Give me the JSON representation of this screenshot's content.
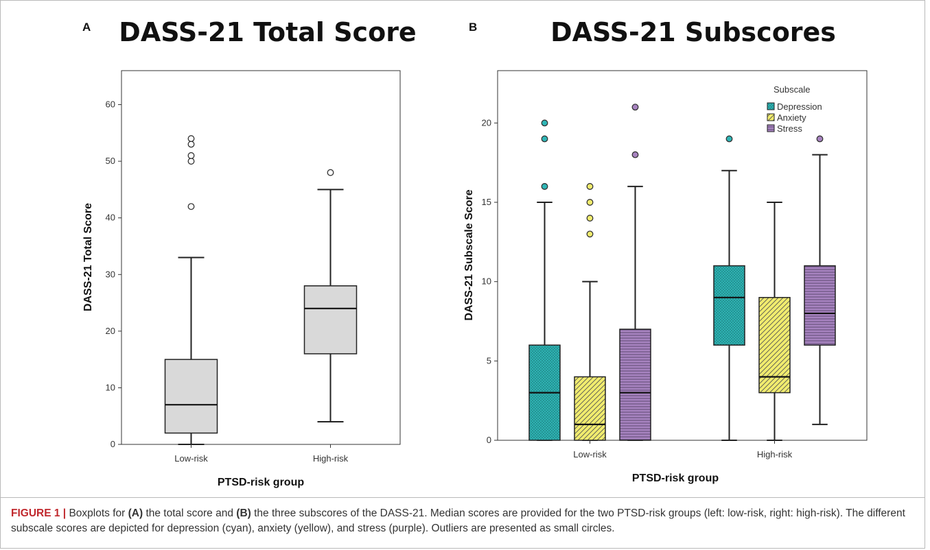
{
  "panel_a": {
    "letter": "A",
    "title": "DASS-21 Total Score"
  },
  "panel_b": {
    "letter": "B",
    "title": "DASS-21 Subscores"
  },
  "caption": {
    "label": "FIGURE 1 |",
    "t1": " Boxplots for ",
    "b1": "(A)",
    "t2": " the total score and ",
    "b2": "(B)",
    "t3": " the three subscores of the DASS-21. Median scores are provided for the two PTSD-risk groups (left: low-risk, right: high-risk). The different subscale scores are depicted for depression (cyan), anxiety (yellow), and stress (purple). Outliers are presented as small circles."
  },
  "chart_data": [
    {
      "type": "boxplot",
      "ylabel": "DASS-21 Total Score",
      "xlabel": "PTSD-risk group",
      "ylim": [
        0,
        66
      ],
      "yticks": [
        0,
        10,
        20,
        30,
        40,
        50,
        60
      ],
      "categories": [
        "Low-risk",
        "High-risk"
      ],
      "boxes": [
        {
          "category": "Low-risk",
          "min": 0,
          "q1": 2,
          "median": 7,
          "q3": 15,
          "max": 33,
          "outliers": [
            42,
            50,
            51,
            53,
            54
          ]
        },
        {
          "category": "High-risk",
          "min": 4,
          "q1": 16,
          "median": 24,
          "q3": 28,
          "max": 45,
          "outliers": [
            48
          ]
        }
      ],
      "box_color": "#d9d9d9"
    },
    {
      "type": "boxplot",
      "ylabel": "DASS-21 Subscale Score",
      "xlabel": "PTSD-risk group",
      "ylim": [
        0,
        23.3
      ],
      "yticks": [
        0,
        5,
        10,
        15,
        20
      ],
      "categories": [
        "Low-risk",
        "High-risk"
      ],
      "legend": {
        "title": "Subscale",
        "position": "top-right",
        "entries": [
          "Depression",
          "Anxiety",
          "Stress"
        ]
      },
      "series": [
        {
          "name": "Depression",
          "color": "#2fb6b6",
          "boxes": [
            {
              "category": "Low-risk",
              "min": 0,
              "q1": 0,
              "median": 3,
              "q3": 6,
              "max": 15,
              "outliers": [
                16,
                19,
                20
              ]
            },
            {
              "category": "High-risk",
              "min": 0,
              "q1": 6,
              "median": 9,
              "q3": 11,
              "max": 17,
              "outliers": [
                19
              ]
            }
          ]
        },
        {
          "name": "Anxiety",
          "color": "#f1ec6e",
          "boxes": [
            {
              "category": "Low-risk",
              "min": 0,
              "q1": 0,
              "median": 1,
              "q3": 4,
              "max": 10,
              "outliers": [
                13,
                14,
                15,
                16
              ]
            },
            {
              "category": "High-risk",
              "min": 0,
              "q1": 3,
              "median": 4,
              "q3": 9,
              "max": 15,
              "outliers": []
            }
          ]
        },
        {
          "name": "Stress",
          "color": "#a783c0",
          "boxes": [
            {
              "category": "Low-risk",
              "min": 0,
              "q1": 0,
              "median": 3,
              "q3": 7,
              "max": 16,
              "outliers": [
                18,
                21
              ]
            },
            {
              "category": "High-risk",
              "min": 1,
              "q1": 6,
              "median": 8,
              "q3": 11,
              "max": 18,
              "outliers": [
                19
              ]
            }
          ]
        }
      ]
    }
  ]
}
